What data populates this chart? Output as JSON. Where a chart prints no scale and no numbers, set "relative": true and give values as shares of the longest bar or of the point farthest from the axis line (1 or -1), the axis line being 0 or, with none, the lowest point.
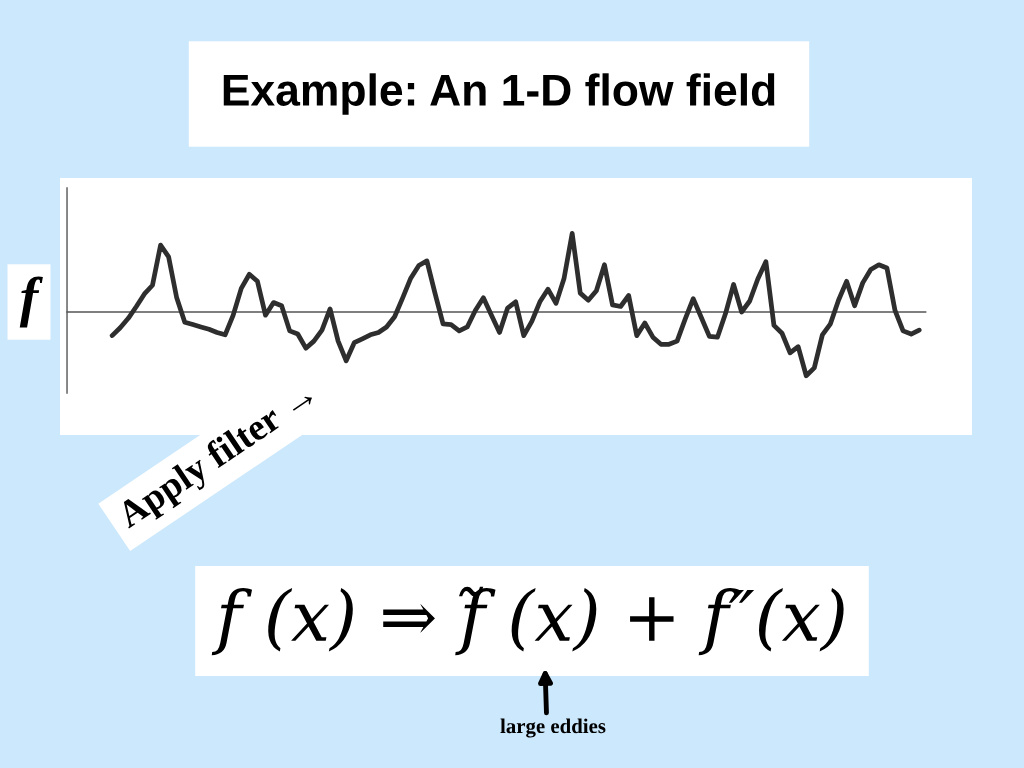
{
  "chart_data": {
    "type": "line",
    "title": "Example: An 1-D flow field",
    "ylabel": "f",
    "relative": true,
    "annotations": [
      "Apply filter →",
      "f (x) ⇒ f̃ (x) + f″(x)",
      "large eddies"
    ],
    "categories": [
      null,
      null,
      null,
      null,
      null,
      null,
      null,
      null,
      null,
      null,
      null,
      null,
      null,
      null,
      null,
      null,
      null,
      null,
      null,
      null,
      null,
      null,
      null,
      null,
      null,
      null,
      null,
      null,
      null,
      null,
      null,
      null,
      null,
      null,
      null,
      null,
      null,
      null,
      null,
      null,
      null,
      null,
      null,
      null,
      null,
      null,
      null,
      null,
      null,
      null,
      null,
      null,
      null,
      null,
      null,
      null,
      null,
      null,
      null,
      null,
      null,
      null,
      null,
      null,
      null,
      null,
      null,
      null,
      null,
      null,
      null,
      null,
      null,
      null,
      null,
      null,
      null,
      null,
      null,
      null,
      null,
      null,
      null,
      null,
      null,
      null,
      null,
      null,
      null,
      null,
      null,
      null,
      null,
      null,
      null,
      null,
      null,
      null,
      null,
      null,
      null
    ],
    "series": [
      {
        "color": "#2e2e2e",
        "values": [
          -0.3,
          -0.2,
          -0.08,
          0.07,
          0.23,
          0.34,
          0.85,
          0.7,
          0.18,
          -0.13,
          -0.16,
          -0.19,
          -0.22,
          -0.26,
          -0.29,
          -0.04,
          0.3,
          0.48,
          0.39,
          -0.04,
          0.12,
          0.08,
          -0.24,
          -0.28,
          -0.46,
          -0.37,
          -0.23,
          0.04,
          -0.37,
          -0.62,
          -0.39,
          -0.34,
          -0.29,
          -0.26,
          -0.19,
          -0.06,
          0.18,
          0.43,
          0.59,
          0.65,
          0.24,
          -0.15,
          -0.16,
          -0.24,
          -0.19,
          0.02,
          0.18,
          -0.04,
          -0.26,
          0.05,
          0.13,
          -0.3,
          -0.12,
          0.13,
          0.29,
          0.11,
          0.43,
          1.0,
          0.24,
          0.15,
          0.27,
          0.6,
          0.09,
          0.07,
          0.21,
          -0.3,
          -0.14,
          -0.32,
          -0.41,
          -0.41,
          -0.37,
          -0.09,
          0.17,
          -0.07,
          -0.31,
          -0.32,
          -0.02,
          0.35,
          0.0,
          0.14,
          0.42,
          0.64,
          -0.17,
          -0.27,
          -0.52,
          -0.44,
          -0.81,
          -0.71,
          -0.29,
          -0.15,
          0.15,
          0.39,
          0.08,
          0.37,
          0.54,
          0.6,
          0.56,
          0.02,
          -0.24,
          -0.28,
          -0.23
        ]
      }
    ]
  }
}
